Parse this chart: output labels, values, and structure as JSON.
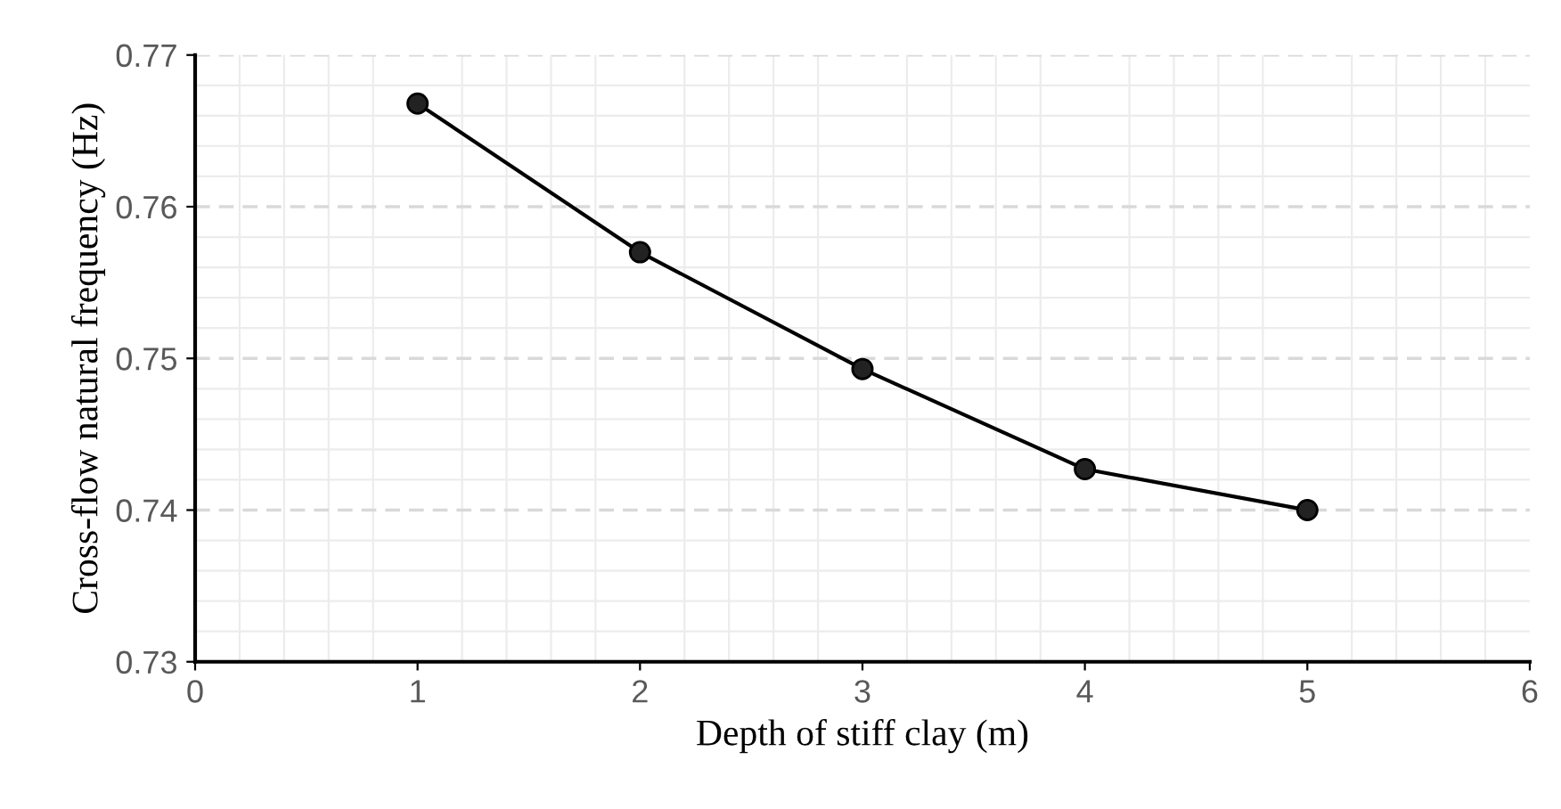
{
  "chart_data": {
    "type": "line",
    "xlabel": "Depth of stiff clay (m)",
    "ylabel": "Cross-flow natural frequency (Hz)",
    "x": [
      1,
      2,
      3,
      4,
      5
    ],
    "series": [
      {
        "color": "#000000",
        "values": [
          0.7668,
          0.757,
          0.7493,
          0.7427,
          0.74
        ]
      }
    ],
    "xlim": [
      0,
      6
    ],
    "xticks": [
      0,
      1,
      2,
      3,
      4,
      5,
      6
    ],
    "ylim": [
      0.73,
      0.77
    ],
    "yticks": [
      {
        "value": 0.73,
        "label": "0.73"
      },
      {
        "value": 0.74,
        "label": "0.74"
      },
      {
        "value": 0.75,
        "label": "0.75"
      },
      {
        "value": 0.76,
        "label": "0.76"
      },
      {
        "value": 0.77,
        "label": "0.77"
      }
    ],
    "grid": true,
    "marker": "circle",
    "line_style": "solid"
  }
}
